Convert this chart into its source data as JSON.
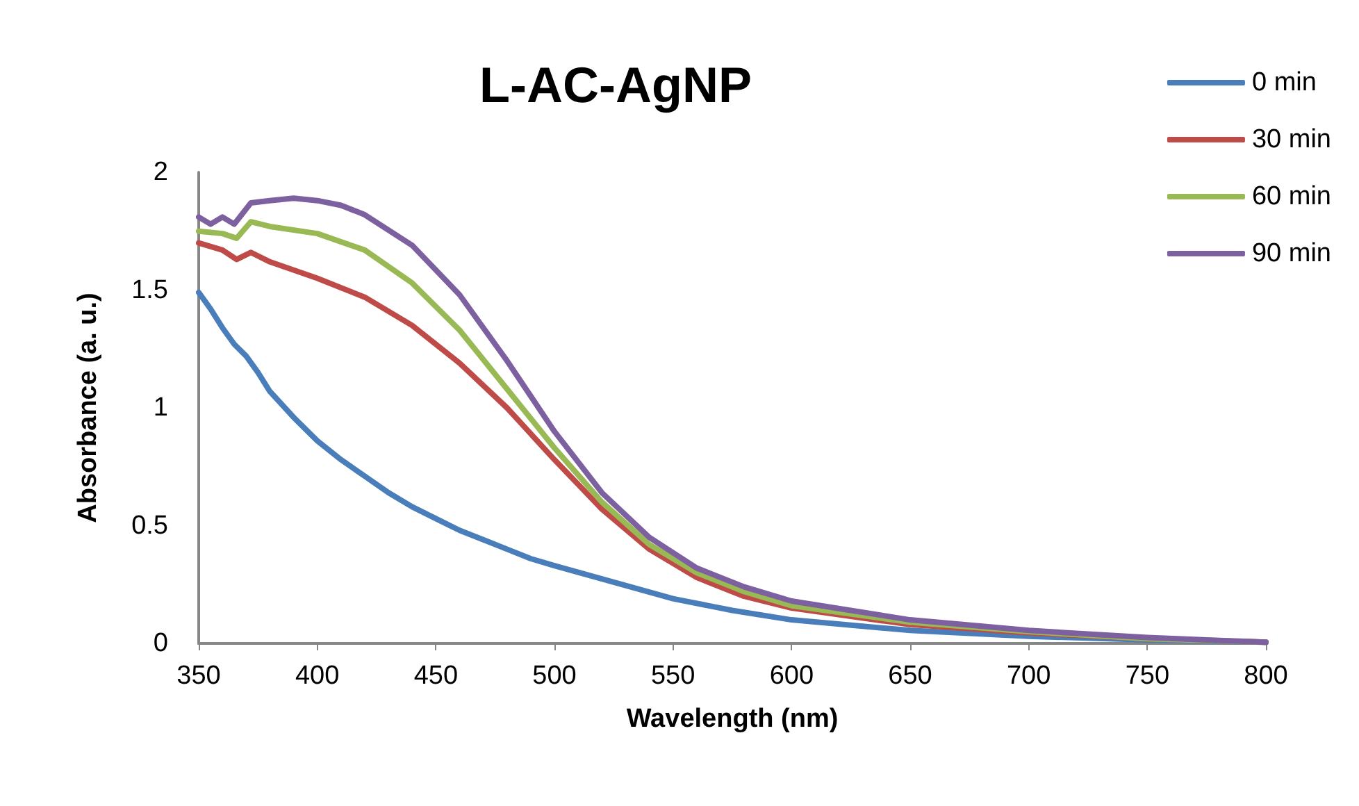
{
  "chart_data": {
    "type": "line",
    "title": "L-AC-AgNP",
    "xlabel": "Wavelength (nm)",
    "ylabel": "Absorbance (a. u.)",
    "xlim": [
      350,
      800
    ],
    "xticks": [
      350,
      400,
      450,
      500,
      550,
      600,
      650,
      700,
      750,
      800
    ],
    "ylim": [
      0,
      2
    ],
    "yticks": [
      0,
      0.5,
      1,
      1.5,
      2
    ],
    "grid": false,
    "legend": "right",
    "marker": "none",
    "line_style": "solid",
    "series": [
      {
        "name": "0 min",
        "color": "#4a7ebb",
        "x": [
          350,
          355,
          360,
          365,
          370,
          375,
          380,
          390,
          400,
          410,
          420,
          430,
          440,
          450,
          460,
          470,
          480,
          490,
          500,
          525,
          550,
          575,
          600,
          650,
          700,
          750,
          800
        ],
        "values": [
          1.49,
          1.42,
          1.34,
          1.27,
          1.22,
          1.15,
          1.07,
          0.96,
          0.86,
          0.78,
          0.71,
          0.64,
          0.58,
          0.53,
          0.48,
          0.44,
          0.4,
          0.36,
          0.33,
          0.26,
          0.19,
          0.14,
          0.1,
          0.055,
          0.03,
          0.015,
          0.005
        ]
      },
      {
        "name": "30 min",
        "color": "#be4b48",
        "x": [
          350,
          360,
          366,
          370,
          372,
          380,
          400,
          420,
          440,
          460,
          480,
          500,
          520,
          540,
          560,
          580,
          600,
          650,
          700,
          750,
          800
        ],
        "values": [
          1.7,
          1.67,
          1.63,
          1.65,
          1.66,
          1.62,
          1.55,
          1.47,
          1.35,
          1.19,
          1.0,
          0.78,
          0.57,
          0.4,
          0.28,
          0.2,
          0.15,
          0.08,
          0.045,
          0.02,
          0.005
        ]
      },
      {
        "name": "60 min",
        "color": "#98b954",
        "x": [
          350,
          360,
          366,
          372,
          380,
          400,
          420,
          440,
          460,
          480,
          500,
          520,
          540,
          560,
          580,
          600,
          650,
          700,
          750,
          800
        ],
        "values": [
          1.75,
          1.74,
          1.72,
          1.79,
          1.77,
          1.74,
          1.67,
          1.53,
          1.33,
          1.08,
          0.83,
          0.6,
          0.42,
          0.3,
          0.22,
          0.16,
          0.09,
          0.05,
          0.02,
          0.005
        ]
      },
      {
        "name": "90 min",
        "color": "#7d60a0",
        "x": [
          350,
          355,
          360,
          365,
          372,
          380,
          390,
          400,
          410,
          420,
          440,
          460,
          480,
          500,
          520,
          540,
          560,
          580,
          600,
          650,
          700,
          750,
          800
        ],
        "values": [
          1.81,
          1.78,
          1.81,
          1.78,
          1.87,
          1.88,
          1.89,
          1.88,
          1.86,
          1.82,
          1.69,
          1.48,
          1.2,
          0.9,
          0.64,
          0.45,
          0.32,
          0.24,
          0.18,
          0.1,
          0.055,
          0.025,
          0.005
        ]
      }
    ]
  }
}
